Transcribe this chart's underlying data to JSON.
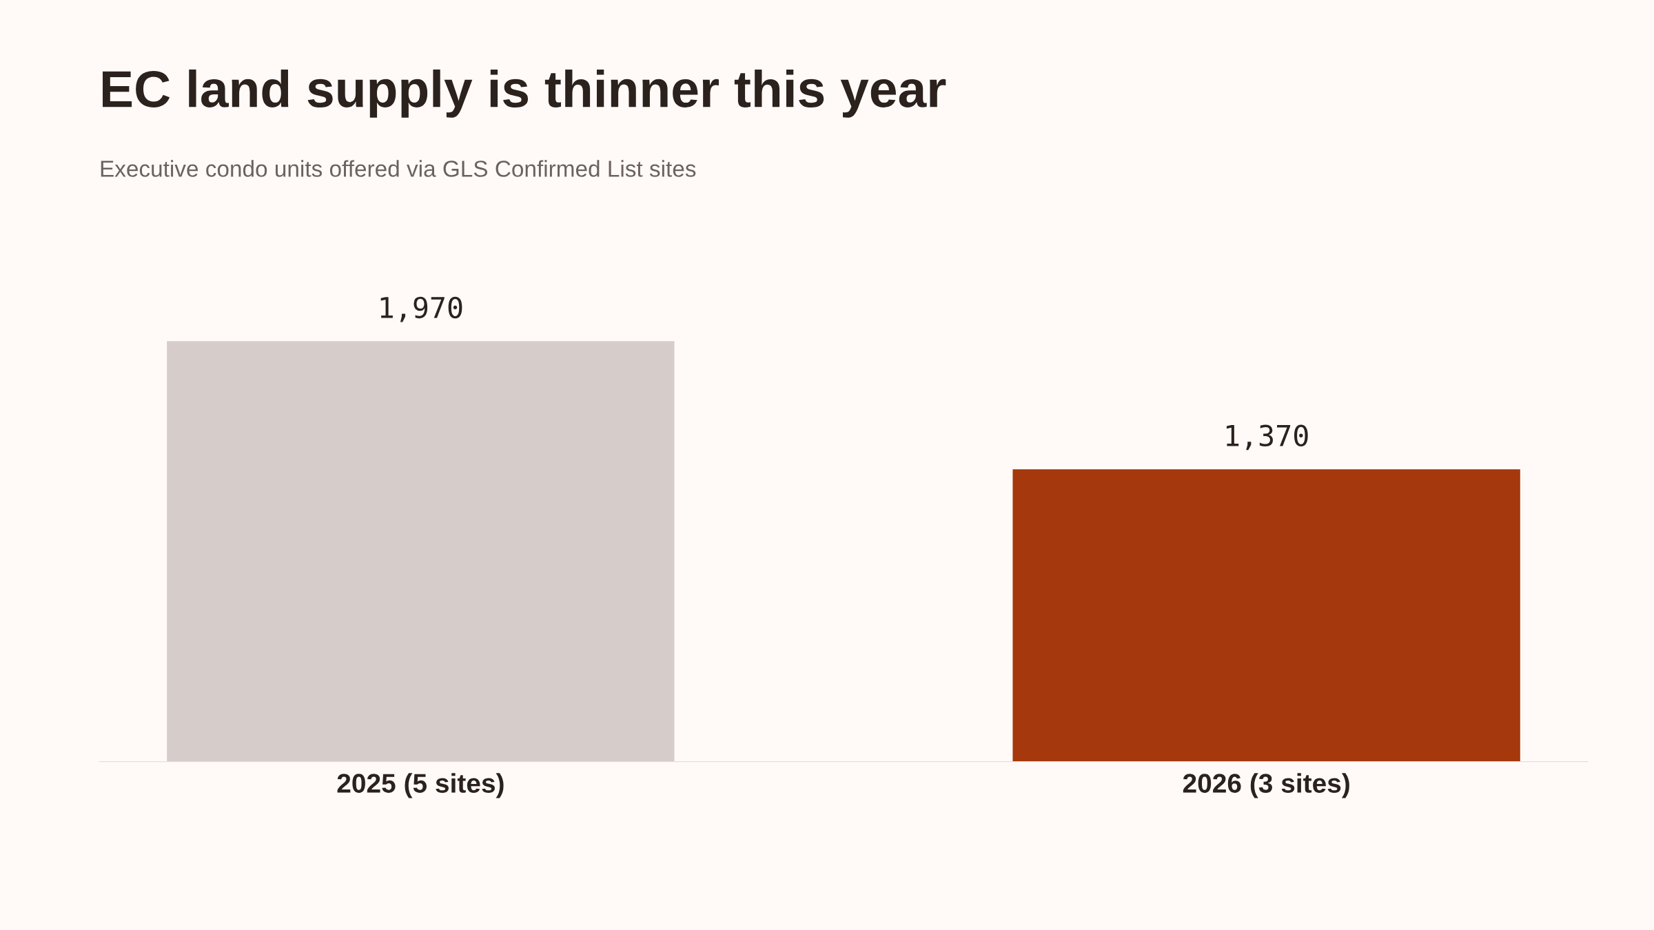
{
  "chart_data": {
    "type": "bar",
    "title": "EC land supply is thinner this year",
    "subtitle": "Executive condo units offered via GLS Confirmed List sites",
    "categories": [
      "2025 (5 sites)",
      "2026 (3 sites)"
    ],
    "values": [
      1970,
      1370
    ],
    "colors": [
      "#d6ccc9",
      "#a5380c"
    ],
    "value_labels": [
      "1,970",
      "1,370"
    ],
    "grid": false,
    "legend": false
  }
}
